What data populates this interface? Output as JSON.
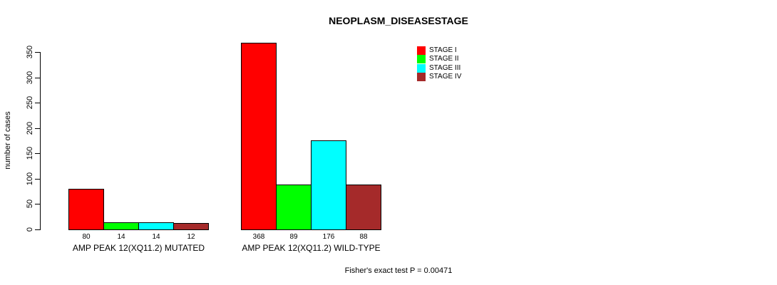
{
  "chart_data": {
    "type": "bar",
    "title": "NEOPLASM_DISEASESTAGE",
    "ylabel": "number of cases",
    "ylim": [
      0,
      350
    ],
    "yticks": [
      0,
      50,
      100,
      150,
      200,
      250,
      300,
      350
    ],
    "grid": false,
    "legend_position": "top-right",
    "series": [
      "STAGE I",
      "STAGE II",
      "STAGE III",
      "STAGE IV"
    ],
    "colors": [
      "#ff0000",
      "#00ff00",
      "#00ffff",
      "#a52a2a"
    ],
    "groups": [
      {
        "label": "AMP PEAK 12(XQ11.2) MUTATED",
        "values": [
          80,
          14,
          14,
          12
        ]
      },
      {
        "label": "AMP PEAK 12(XQ11.2) WILD-TYPE",
        "values": [
          368,
          89,
          176,
          88
        ]
      }
    ],
    "footnote": "Fisher's exact test P = 0.00471"
  }
}
